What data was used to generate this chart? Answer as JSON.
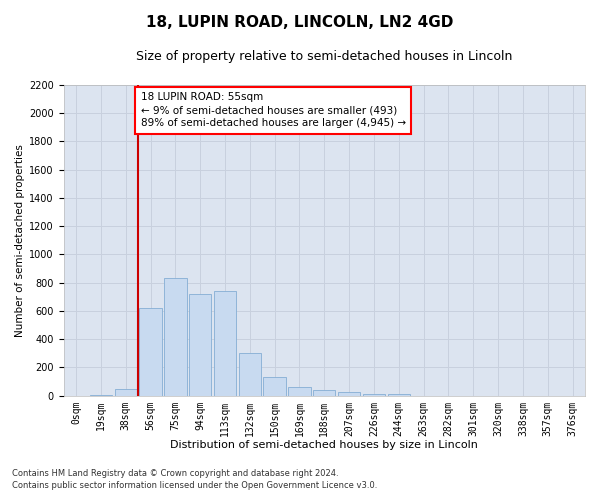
{
  "title": "18, LUPIN ROAD, LINCOLN, LN2 4GD",
  "subtitle": "Size of property relative to semi-detached houses in Lincoln",
  "xlabel": "Distribution of semi-detached houses by size in Lincoln",
  "ylabel": "Number of semi-detached properties",
  "footnote1": "Contains HM Land Registry data © Crown copyright and database right 2024.",
  "footnote2": "Contains public sector information licensed under the Open Government Licence v3.0.",
  "annotation_title": "18 LUPIN ROAD: 55sqm",
  "annotation_line1": "← 9% of semi-detached houses are smaller (493)",
  "annotation_line2": "89% of semi-detached houses are larger (4,945) →",
  "bar_labels": [
    "0sqm",
    "19sqm",
    "38sqm",
    "56sqm",
    "75sqm",
    "94sqm",
    "113sqm",
    "132sqm",
    "150sqm",
    "169sqm",
    "188sqm",
    "207sqm",
    "226sqm",
    "244sqm",
    "263sqm",
    "282sqm",
    "301sqm",
    "320sqm",
    "338sqm",
    "357sqm",
    "376sqm"
  ],
  "bar_values": [
    0,
    5,
    50,
    620,
    830,
    720,
    740,
    300,
    130,
    60,
    40,
    25,
    15,
    15,
    0,
    0,
    0,
    0,
    0,
    0,
    0
  ],
  "bar_color": "#c8daf0",
  "bar_edge_color": "#85aed4",
  "ylim": [
    0,
    2200
  ],
  "yticks": [
    0,
    200,
    400,
    600,
    800,
    1000,
    1200,
    1400,
    1600,
    1800,
    2000,
    2200
  ],
  "marker_color": "#cc0000",
  "grid_color": "#c8d0de",
  "bg_color": "#dce4f0",
  "title_fontsize": 11,
  "subtitle_fontsize": 9,
  "annot_fontsize": 7.5,
  "axis_fontsize": 7,
  "xlabel_fontsize": 8,
  "ylabel_fontsize": 7.5
}
